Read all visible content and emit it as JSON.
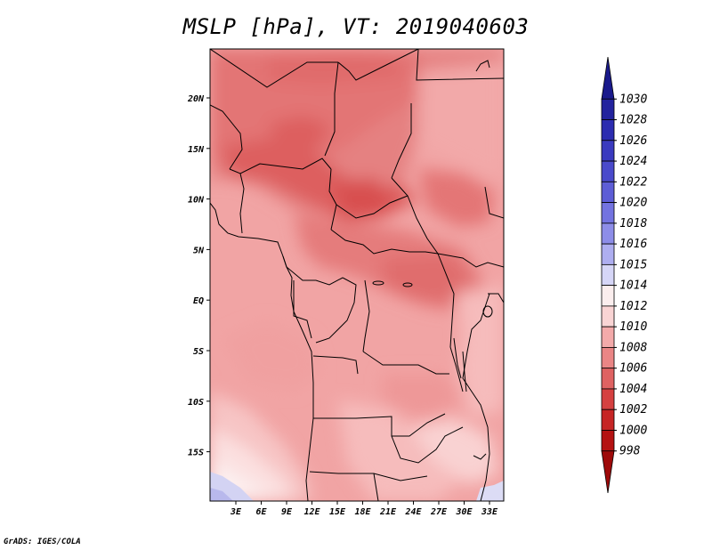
{
  "title": "MSLP [hPa], VT: 2019040603",
  "credit": "GrADS: IGES/COLA",
  "map": {
    "variable": "MSLP",
    "units": "hPa",
    "valid_time": "2019040603",
    "lat_ticks": [
      "20N",
      "15N",
      "10N",
      "5N",
      "EQ",
      "5S",
      "10S",
      "15S"
    ],
    "lon_ticks": [
      "3E",
      "6E",
      "9E",
      "12E",
      "15E",
      "18E",
      "21E",
      "24E",
      "27E",
      "30E",
      "33E"
    ]
  },
  "colorbar": {
    "levels": [
      "1030",
      "1028",
      "1026",
      "1024",
      "1022",
      "1020",
      "1018",
      "1016",
      "1015",
      "1014",
      "1012",
      "1010",
      "1008",
      "1006",
      "1004",
      "1002",
      "1000",
      "998"
    ],
    "colors": [
      "#1a1a8c",
      "#23239e",
      "#2c2cb0",
      "#3a3abf",
      "#4a4acb",
      "#5d5dd6",
      "#7373e0",
      "#8d8de8",
      "#aeaef0",
      "#d6d6f7",
      "#fbeeee",
      "#f9d4d4",
      "#f3aaaa",
      "#ea8585",
      "#df6262",
      "#d54040",
      "#c62525",
      "#b41212",
      "#9e0a0a"
    ]
  }
}
